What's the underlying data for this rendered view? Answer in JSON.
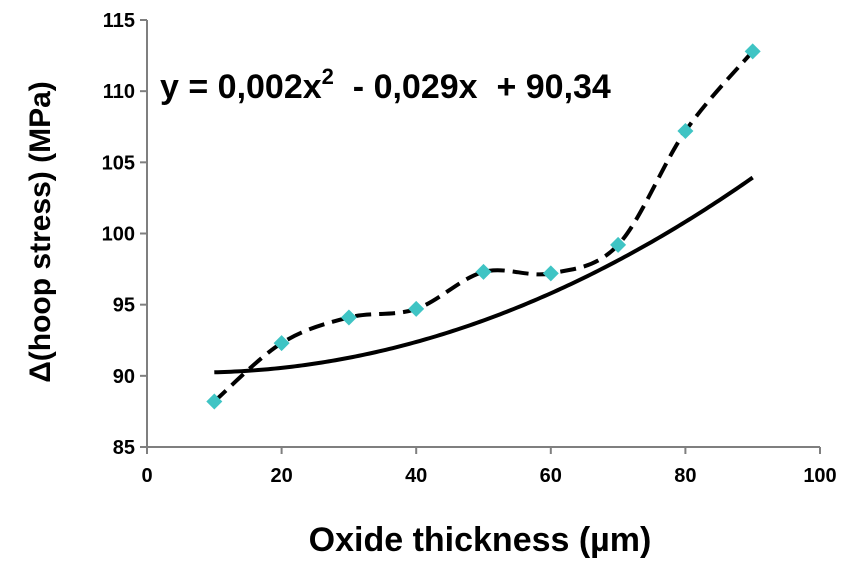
{
  "chart_data": {
    "type": "scatter",
    "xlabel": "Oxide thickness (µm)",
    "ylabel": "Δ(hoop stress) (MPa)",
    "xlim": [
      0,
      100
    ],
    "ylim": [
      85,
      115
    ],
    "x_ticks": [
      0,
      20,
      40,
      60,
      80,
      100
    ],
    "y_ticks": [
      85,
      90,
      95,
      100,
      105,
      110,
      115
    ],
    "grid": false,
    "series": [
      {
        "x": [
          10,
          20,
          30,
          40,
          50,
          60,
          70,
          80,
          90
        ],
        "y": [
          88.2,
          92.3,
          94.1,
          94.7,
          97.3,
          97.2,
          99.2,
          107.2,
          112.8
        ],
        "marker": "diamond",
        "marker_color": "#3fc4c4",
        "line_style": "dashed",
        "line_color": "#000000"
      }
    ],
    "trendline": {
      "type": "polynomial",
      "equation": {
        "prefix": "y = 0,002x",
        "exponent": "2",
        "suffix": "  - 0,029x  + 90,34"
      },
      "coefficients": [
        0.002,
        -0.029,
        90.34
      ],
      "x_range": [
        10,
        90
      ],
      "line_color": "#000000",
      "line_style": "solid"
    }
  }
}
